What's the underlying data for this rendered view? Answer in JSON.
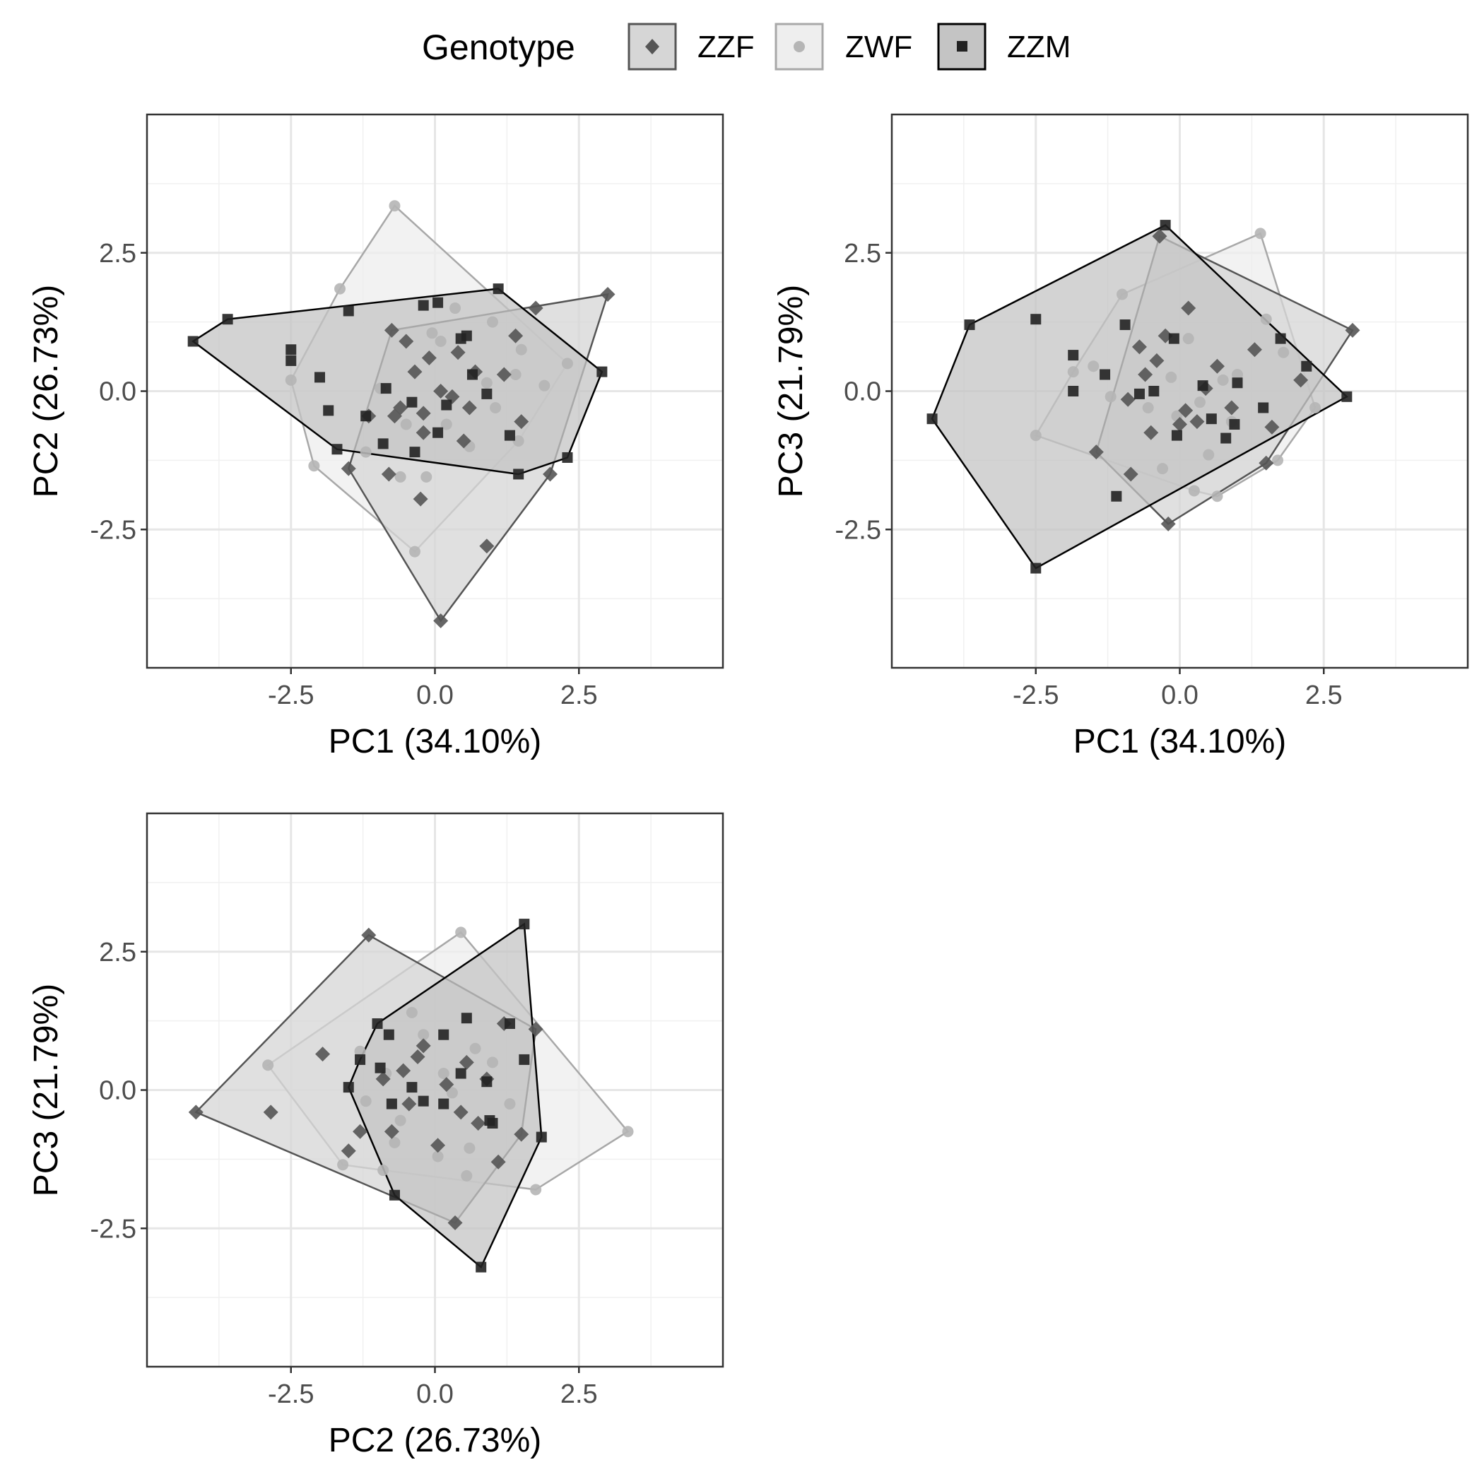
{
  "legend": {
    "title": "Genotype",
    "entries": [
      {
        "key": "ZZF",
        "label": "ZZF",
        "shape": "diamond",
        "point_color": "#555555",
        "fill": "#d6d6d6",
        "stroke": "#555555"
      },
      {
        "key": "ZWF",
        "label": "ZWF",
        "shape": "circle",
        "point_color": "#b5b5b5",
        "fill": "#eeeeee",
        "stroke": "#a8a8a8"
      },
      {
        "key": "ZZM",
        "label": "ZZM",
        "shape": "square",
        "point_color": "#222222",
        "fill": "#c4c4c4",
        "stroke": "#000000"
      }
    ]
  },
  "chart_data": [
    {
      "type": "scatter",
      "panel": "top-left",
      "xlabel": "PC1 (34.10%)",
      "ylabel": "PC2 (26.73%)",
      "xlim": [
        -5,
        5
      ],
      "ylim": [
        -5,
        5
      ],
      "xticks": [
        -2.5,
        0.0,
        2.5
      ],
      "yticks": [
        -2.5,
        0.0,
        2.5
      ],
      "xtick_labels": [
        "-2.5",
        "0.0",
        "2.5"
      ],
      "ytick_labels": [
        "-2.5",
        "0.0",
        "2.5"
      ],
      "grid": true,
      "series": [
        {
          "name": "ZZF",
          "points": [
            [
              3.0,
              1.75
            ],
            [
              1.75,
              1.5
            ],
            [
              -0.75,
              1.1
            ],
            [
              -0.5,
              0.9
            ],
            [
              0.4,
              0.7
            ],
            [
              1.4,
              1.0
            ],
            [
              0.1,
              0.0
            ],
            [
              -0.2,
              -0.4
            ],
            [
              0.6,
              -0.3
            ],
            [
              1.5,
              -0.55
            ],
            [
              2.0,
              -1.5
            ],
            [
              0.9,
              -2.8
            ],
            [
              0.1,
              -4.15
            ],
            [
              -0.25,
              -1.95
            ],
            [
              -0.8,
              -1.5
            ],
            [
              -1.5,
              -1.4
            ],
            [
              -1.15,
              -0.45
            ],
            [
              -0.6,
              -0.3
            ],
            [
              -0.35,
              0.35
            ],
            [
              0.7,
              0.35
            ],
            [
              -0.1,
              0.6
            ],
            [
              0.3,
              -0.1
            ],
            [
              1.2,
              0.3
            ],
            [
              -0.2,
              -0.75
            ],
            [
              0.5,
              -0.9
            ],
            [
              -0.7,
              -0.45
            ]
          ]
        },
        {
          "name": "ZWF",
          "points": [
            [
              -0.7,
              3.35
            ],
            [
              -1.65,
              1.85
            ],
            [
              -2.5,
              0.2
            ],
            [
              -2.1,
              -1.35
            ],
            [
              -0.35,
              -2.9
            ],
            [
              2.3,
              0.5
            ],
            [
              1.5,
              0.75
            ],
            [
              1.05,
              -0.3
            ],
            [
              0.35,
              1.5
            ],
            [
              -0.05,
              1.05
            ],
            [
              -0.5,
              -0.6
            ],
            [
              -0.15,
              -1.55
            ],
            [
              -1.2,
              -1.1
            ],
            [
              0.9,
              0.15
            ],
            [
              0.6,
              -1.0
            ],
            [
              -0.95,
              0.05
            ],
            [
              1.45,
              -0.9
            ],
            [
              1.9,
              0.1
            ],
            [
              0.2,
              -0.6
            ],
            [
              -0.6,
              -1.55
            ],
            [
              1.0,
              1.25
            ],
            [
              0.1,
              0.9
            ],
            [
              1.4,
              0.3
            ]
          ]
        },
        {
          "name": "ZZM",
          "points": [
            [
              -4.2,
              0.9
            ],
            [
              -3.6,
              1.3
            ],
            [
              1.1,
              1.85
            ],
            [
              2.9,
              0.35
            ],
            [
              2.3,
              -1.2
            ],
            [
              1.45,
              -1.5
            ],
            [
              -1.7,
              -1.05
            ],
            [
              -2.5,
              0.75
            ],
            [
              -2.0,
              0.25
            ],
            [
              -1.5,
              1.45
            ],
            [
              -0.2,
              1.55
            ],
            [
              0.05,
              1.6
            ],
            [
              0.45,
              0.95
            ],
            [
              -0.85,
              0.05
            ],
            [
              -1.2,
              -0.45
            ],
            [
              -0.9,
              -0.95
            ],
            [
              0.2,
              -0.25
            ],
            [
              0.65,
              0.3
            ],
            [
              -0.4,
              -0.2
            ],
            [
              0.05,
              -0.75
            ],
            [
              -0.35,
              -1.1
            ],
            [
              1.3,
              -0.8
            ],
            [
              0.55,
              1.0
            ],
            [
              -1.85,
              -0.35
            ],
            [
              -2.5,
              0.55
            ],
            [
              0.9,
              -0.05
            ]
          ]
        }
      ]
    },
    {
      "type": "scatter",
      "panel": "top-right",
      "xlabel": "PC1 (34.10%)",
      "ylabel": "PC3 (21.79%)",
      "xlim": [
        -5,
        5
      ],
      "ylim": [
        -5,
        5
      ],
      "xticks": [
        -2.5,
        0.0,
        2.5
      ],
      "yticks": [
        -2.5,
        0.0,
        2.5
      ],
      "xtick_labels": [
        "-2.5",
        "0.0",
        "2.5"
      ],
      "ytick_labels": [
        "-2.5",
        "0.0",
        "2.5"
      ],
      "grid": true,
      "series": [
        {
          "name": "ZZF",
          "points": [
            [
              -0.35,
              2.8
            ],
            [
              3.0,
              1.1
            ],
            [
              -0.2,
              -2.4
            ],
            [
              -1.45,
              -1.1
            ],
            [
              0.15,
              1.5
            ],
            [
              -0.7,
              0.8
            ],
            [
              -0.25,
              1.0
            ],
            [
              0.45,
              0.05
            ],
            [
              0.9,
              -0.3
            ],
            [
              1.6,
              -0.65
            ],
            [
              2.1,
              0.2
            ],
            [
              -0.5,
              -0.75
            ],
            [
              0.3,
              -0.55
            ],
            [
              -0.4,
              0.55
            ],
            [
              1.5,
              -1.3
            ],
            [
              -0.85,
              -1.5
            ],
            [
              0.65,
              0.45
            ],
            [
              -0.6,
              0.3
            ],
            [
              0.1,
              -0.35
            ],
            [
              1.3,
              0.75
            ],
            [
              0.0,
              -0.6
            ],
            [
              -0.9,
              -0.15
            ]
          ]
        },
        {
          "name": "ZWF",
          "points": [
            [
              1.4,
              2.85
            ],
            [
              -2.5,
              -0.8
            ],
            [
              -1.0,
              1.75
            ],
            [
              1.7,
              -1.25
            ],
            [
              0.65,
              -1.9
            ],
            [
              0.25,
              -1.8
            ],
            [
              1.5,
              1.3
            ],
            [
              2.35,
              -0.3
            ],
            [
              -1.5,
              0.45
            ],
            [
              -1.85,
              0.35
            ],
            [
              0.35,
              -0.2
            ],
            [
              0.9,
              -0.55
            ],
            [
              -0.55,
              -0.3
            ],
            [
              -0.3,
              -1.4
            ],
            [
              1.0,
              0.3
            ],
            [
              0.15,
              0.95
            ],
            [
              -0.15,
              0.25
            ],
            [
              0.5,
              -1.15
            ],
            [
              1.8,
              0.7
            ],
            [
              -1.2,
              -0.1
            ],
            [
              0.75,
              0.2
            ],
            [
              -0.05,
              -0.45
            ]
          ]
        },
        {
          "name": "ZZM",
          "points": [
            [
              -0.25,
              3.0
            ],
            [
              -3.65,
              1.2
            ],
            [
              -4.3,
              -0.5
            ],
            [
              -2.5,
              -3.2
            ],
            [
              2.9,
              -0.1
            ],
            [
              2.2,
              0.45
            ],
            [
              -2.5,
              1.3
            ],
            [
              -1.85,
              0.65
            ],
            [
              -1.1,
              -1.9
            ],
            [
              -0.95,
              1.2
            ],
            [
              -0.1,
              0.95
            ],
            [
              0.4,
              0.1
            ],
            [
              0.55,
              -0.5
            ],
            [
              1.75,
              0.95
            ],
            [
              1.45,
              -0.3
            ],
            [
              -0.45,
              0.0
            ],
            [
              -0.7,
              -0.05
            ],
            [
              0.95,
              -0.6
            ],
            [
              0.8,
              -0.85
            ],
            [
              -1.3,
              0.3
            ],
            [
              -0.05,
              -0.8
            ],
            [
              1.0,
              0.15
            ],
            [
              -1.85,
              0.0
            ]
          ]
        }
      ]
    },
    {
      "type": "scatter",
      "panel": "bottom-left",
      "xlabel": "PC2 (26.73%)",
      "ylabel": "PC3 (21.79%)",
      "xlim": [
        -5,
        5
      ],
      "ylim": [
        -5,
        5
      ],
      "xticks": [
        -2.5,
        0.0,
        2.5
      ],
      "yticks": [
        -2.5,
        0.0,
        2.5
      ],
      "xtick_labels": [
        "-2.5",
        "0.0",
        "2.5"
      ],
      "ytick_labels": [
        "-2.5",
        "0.0",
        "2.5"
      ],
      "grid": true,
      "series": [
        {
          "name": "ZZF",
          "points": [
            [
              -1.15,
              2.8
            ],
            [
              -4.15,
              -0.4
            ],
            [
              0.35,
              -2.4
            ],
            [
              1.5,
              -0.8
            ],
            [
              1.75,
              1.1
            ],
            [
              -2.85,
              -0.4
            ],
            [
              -1.95,
              0.65
            ],
            [
              -1.5,
              -1.1
            ],
            [
              -0.9,
              0.2
            ],
            [
              -0.3,
              0.6
            ],
            [
              0.55,
              0.5
            ],
            [
              0.9,
              0.2
            ],
            [
              -0.45,
              -0.25
            ],
            [
              0.45,
              -0.4
            ],
            [
              -0.75,
              -0.75
            ],
            [
              0.05,
              -1.0
            ],
            [
              1.1,
              -1.3
            ],
            [
              -1.3,
              -0.75
            ],
            [
              0.2,
              0.1
            ],
            [
              -0.2,
              0.8
            ],
            [
              0.75,
              -0.6
            ],
            [
              -0.55,
              0.35
            ],
            [
              1.2,
              1.2
            ]
          ]
        },
        {
          "name": "ZWF",
          "points": [
            [
              0.45,
              2.85
            ],
            [
              -2.9,
              0.45
            ],
            [
              -1.6,
              -1.35
            ],
            [
              1.75,
              -1.8
            ],
            [
              3.35,
              -0.75
            ],
            [
              0.55,
              -1.55
            ],
            [
              -0.2,
              1.0
            ],
            [
              0.7,
              0.75
            ],
            [
              1.3,
              -0.25
            ],
            [
              -0.6,
              -0.55
            ],
            [
              -0.85,
              0.3
            ],
            [
              0.3,
              -0.05
            ],
            [
              -1.2,
              -0.2
            ],
            [
              0.05,
              -1.2
            ],
            [
              -0.9,
              -1.45
            ],
            [
              1.0,
              0.5
            ],
            [
              -0.4,
              1.4
            ],
            [
              0.15,
              0.3
            ],
            [
              -1.3,
              0.7
            ],
            [
              0.6,
              -1.05
            ],
            [
              -0.7,
              -0.95
            ]
          ]
        },
        {
          "name": "ZZM",
          "points": [
            [
              1.55,
              3.0
            ],
            [
              -1.0,
              1.2
            ],
            [
              -1.5,
              0.05
            ],
            [
              -0.7,
              -1.9
            ],
            [
              0.8,
              -3.2
            ],
            [
              1.85,
              -0.85
            ],
            [
              1.3,
              1.2
            ],
            [
              0.55,
              1.3
            ],
            [
              -1.3,
              0.55
            ],
            [
              -0.95,
              0.4
            ],
            [
              -0.4,
              0.05
            ],
            [
              0.45,
              0.3
            ],
            [
              0.9,
              0.15
            ],
            [
              -0.2,
              -0.2
            ],
            [
              0.15,
              -0.25
            ],
            [
              1.55,
              0.55
            ],
            [
              -0.75,
              -0.25
            ],
            [
              0.95,
              -0.55
            ],
            [
              -0.8,
              1.0
            ],
            [
              0.15,
              1.0
            ],
            [
              1.0,
              -0.6
            ]
          ]
        }
      ]
    }
  ]
}
